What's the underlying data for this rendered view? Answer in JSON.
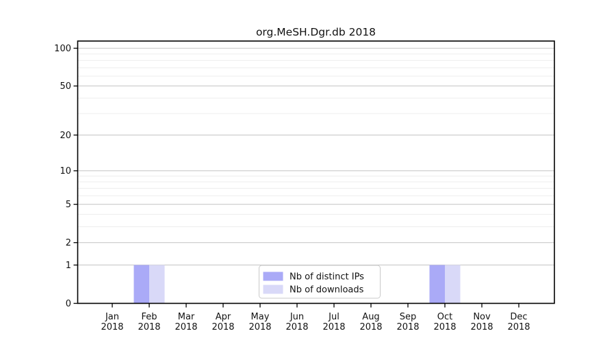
{
  "chart_data": {
    "type": "bar",
    "title": "org.MeSH.Dgr.db 2018",
    "categories": [
      {
        "label": "Jan",
        "sub": "2018"
      },
      {
        "label": "Feb",
        "sub": "2018"
      },
      {
        "label": "Mar",
        "sub": "2018"
      },
      {
        "label": "Apr",
        "sub": "2018"
      },
      {
        "label": "May",
        "sub": "2018"
      },
      {
        "label": "Jun",
        "sub": "2018"
      },
      {
        "label": "Jul",
        "sub": "2018"
      },
      {
        "label": "Aug",
        "sub": "2018"
      },
      {
        "label": "Sep",
        "sub": "2018"
      },
      {
        "label": "Oct",
        "sub": "2018"
      },
      {
        "label": "Nov",
        "sub": "2018"
      },
      {
        "label": "Dec",
        "sub": "2018"
      }
    ],
    "series": [
      {
        "name": "Nb of distinct IPs",
        "color": "#aaaaf7",
        "values": [
          0,
          1,
          0,
          0,
          0,
          0,
          0,
          0,
          0,
          1,
          0,
          0
        ]
      },
      {
        "name": "Nb of downloads",
        "color": "#d9d9f8",
        "values": [
          0,
          1,
          0,
          0,
          0,
          0,
          0,
          0,
          0,
          1,
          0,
          0
        ]
      }
    ],
    "yscale": "log1p",
    "yticks": [
      0,
      1,
      2,
      5,
      10,
      20,
      50,
      100
    ],
    "yticks_minor": [
      3,
      4,
      6,
      7,
      8,
      9,
      30,
      40,
      60,
      70,
      80,
      90
    ],
    "ylim": [
      0,
      113
    ],
    "grid": true,
    "legend_position": "bottom-center",
    "colors": {
      "grid_major": "#c9c9c9",
      "grid_minor": "#ededed",
      "axis": "#000000",
      "background": "#ffffff",
      "legend_border": "#c9c9c9"
    }
  }
}
